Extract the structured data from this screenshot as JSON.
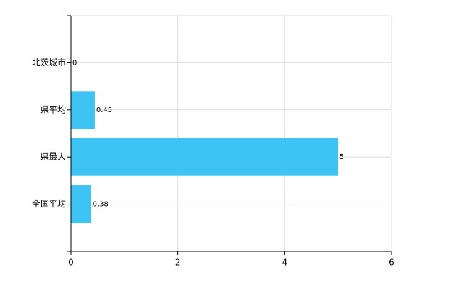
{
  "chart_data": {
    "type": "bar",
    "horizontal": true,
    "categories": [
      "北茨城市",
      "県平均",
      "県最大",
      "全国平均"
    ],
    "values": [
      0,
      0.45,
      5,
      0.38
    ],
    "color": "#3ec3f5",
    "xlim": [
      0,
      6
    ],
    "xticks": [
      0,
      2,
      4,
      6
    ],
    "grid": true
  }
}
